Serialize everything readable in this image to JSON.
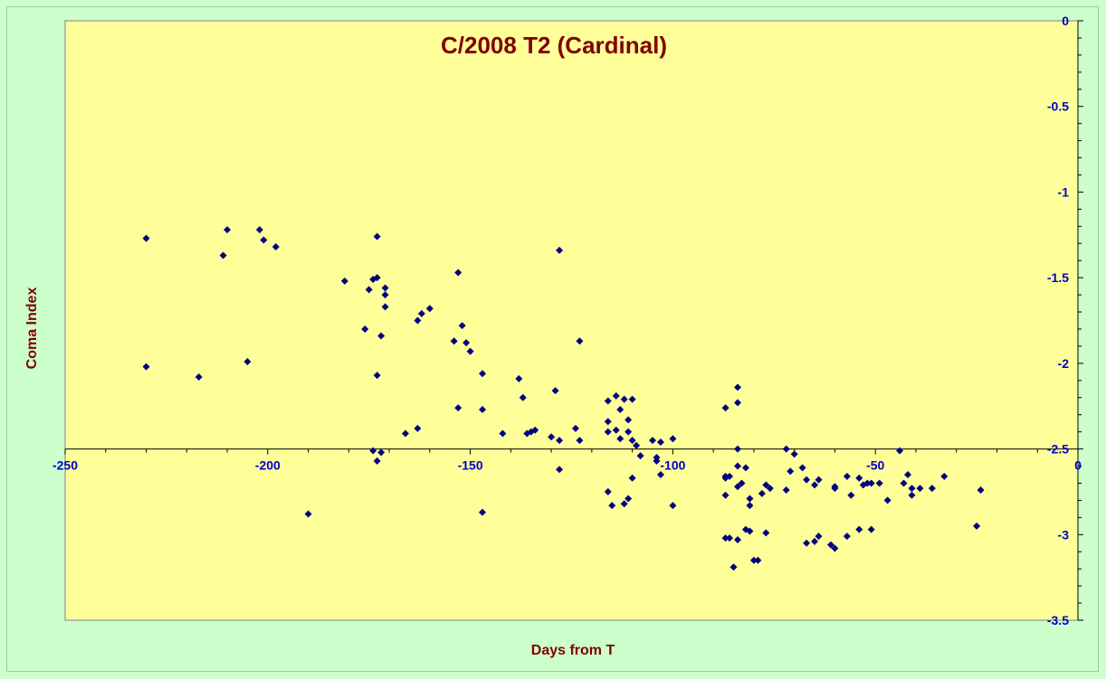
{
  "chart_data": {
    "type": "scatter",
    "title": "C/2008 T2 (Cardinal)",
    "xlabel": "Days from T",
    "ylabel": "Coma Index",
    "xlim": [
      -250,
      0
    ],
    "ylim": [
      -3.5,
      0
    ],
    "x_ticks": [
      -250,
      -200,
      -150,
      -100,
      -50,
      0
    ],
    "y_ticks": [
      0,
      -0.5,
      -1,
      -1.5,
      -2,
      -2.5,
      -3,
      -3.5
    ],
    "x_axis_crosses_y": -2.5,
    "y_axis_position": "right",
    "grid": false,
    "legend": "none",
    "colors": {
      "plot_background": "#ffff99",
      "page_background": "#ccffcc",
      "marker": "#000080",
      "title": "#800000",
      "tick_labels": "#0000cc"
    },
    "points": [
      [
        -230,
        -1.27
      ],
      [
        -230,
        -2.02
      ],
      [
        -217,
        -2.08
      ],
      [
        -211,
        -1.37
      ],
      [
        -210,
        -1.22
      ],
      [
        -205,
        -1.99
      ],
      [
        -202,
        -1.22
      ],
      [
        -201,
        -1.28
      ],
      [
        -198,
        -1.32
      ],
      [
        -190,
        -2.88
      ],
      [
        -181,
        -1.52
      ],
      [
        -176,
        -1.8
      ],
      [
        -175,
        -1.57
      ],
      [
        -174,
        -1.51
      ],
      [
        -174,
        -2.51
      ],
      [
        -173,
        -1.5
      ],
      [
        -173,
        -1.26
      ],
      [
        -173,
        -2.07
      ],
      [
        -173,
        -2.57
      ],
      [
        -172,
        -1.84
      ],
      [
        -172,
        -2.52
      ],
      [
        -171,
        -1.56
      ],
      [
        -171,
        -1.6
      ],
      [
        -171,
        -1.67
      ],
      [
        -166,
        -2.41
      ],
      [
        -163,
        -1.75
      ],
      [
        -163,
        -2.38
      ],
      [
        -162,
        -1.71
      ],
      [
        -160,
        -1.68
      ],
      [
        -154,
        -1.87
      ],
      [
        -153,
        -1.47
      ],
      [
        -153,
        -2.26
      ],
      [
        -152,
        -1.78
      ],
      [
        -151,
        -1.88
      ],
      [
        -150,
        -1.93
      ],
      [
        -147,
        -2.06
      ],
      [
        -147,
        -2.27
      ],
      [
        -147,
        -2.87
      ],
      [
        -142,
        -2.41
      ],
      [
        -138,
        -2.09
      ],
      [
        -137,
        -2.2
      ],
      [
        -136,
        -2.41
      ],
      [
        -135,
        -2.4
      ],
      [
        -134,
        -2.39
      ],
      [
        -130,
        -2.43
      ],
      [
        -129,
        -2.16
      ],
      [
        -128,
        -2.45
      ],
      [
        -128,
        -2.62
      ],
      [
        -128,
        -1.34
      ],
      [
        -124,
        -2.38
      ],
      [
        -123,
        -1.87
      ],
      [
        -123,
        -2.45
      ],
      [
        -116,
        -2.22
      ],
      [
        -116,
        -2.34
      ],
      [
        -116,
        -2.4
      ],
      [
        -116,
        -2.75
      ],
      [
        -115,
        -2.83
      ],
      [
        -114,
        -2.19
      ],
      [
        -114,
        -2.39
      ],
      [
        -113,
        -2.27
      ],
      [
        -113,
        -2.44
      ],
      [
        -112,
        -2.21
      ],
      [
        -112,
        -2.82
      ],
      [
        -111,
        -2.33
      ],
      [
        -111,
        -2.4
      ],
      [
        -111,
        -2.79
      ],
      [
        -110,
        -2.21
      ],
      [
        -110,
        -2.45
      ],
      [
        -110,
        -2.67
      ],
      [
        -109,
        -2.48
      ],
      [
        -108,
        -2.54
      ],
      [
        -105,
        -2.45
      ],
      [
        -104,
        -2.57
      ],
      [
        -104,
        -2.55
      ],
      [
        -103,
        -2.46
      ],
      [
        -103,
        -2.65
      ],
      [
        -100,
        -2.44
      ],
      [
        -100,
        -2.83
      ],
      [
        -87,
        -2.26
      ],
      [
        -87,
        -2.67
      ],
      [
        -87,
        -2.66
      ],
      [
        -87,
        -2.77
      ],
      [
        -87,
        -3.02
      ],
      [
        -86,
        -2.66
      ],
      [
        -86,
        -3.02
      ],
      [
        -85,
        -3.19
      ],
      [
        -84,
        -2.14
      ],
      [
        -84,
        -2.23
      ],
      [
        -84,
        -2.5
      ],
      [
        -84,
        -2.6
      ],
      [
        -84,
        -2.72
      ],
      [
        -84,
        -3.03
      ],
      [
        -83,
        -2.7
      ],
      [
        -82,
        -2.97
      ],
      [
        -82,
        -2.61
      ],
      [
        -81,
        -2.98
      ],
      [
        -81,
        -2.79
      ],
      [
        -81,
        -2.83
      ],
      [
        -80,
        -3.15
      ],
      [
        -79,
        -3.15
      ],
      [
        -78,
        -2.76
      ],
      [
        -77,
        -2.71
      ],
      [
        -77,
        -2.99
      ],
      [
        -76,
        -2.73
      ],
      [
        -72,
        -2.5
      ],
      [
        -72,
        -2.74
      ],
      [
        -71,
        -2.63
      ],
      [
        -70,
        -2.53
      ],
      [
        -68,
        -2.61
      ],
      [
        -67,
        -2.68
      ],
      [
        -67,
        -3.05
      ],
      [
        -65,
        -3.04
      ],
      [
        -65,
        -2.71
      ],
      [
        -64,
        -3.01
      ],
      [
        -64,
        -2.68
      ],
      [
        -61,
        -3.06
      ],
      [
        -60,
        -3.08
      ],
      [
        -60,
        -2.72
      ],
      [
        -60,
        -2.73
      ],
      [
        -57,
        -2.66
      ],
      [
        -57,
        -3.01
      ],
      [
        -56,
        -2.77
      ],
      [
        -54,
        -2.67
      ],
      [
        -54,
        -2.97
      ],
      [
        -53,
        -2.71
      ],
      [
        -52,
        -2.7
      ],
      [
        -51,
        -2.97
      ],
      [
        -51,
        -2.7
      ],
      [
        -49,
        -2.7
      ],
      [
        -47,
        -2.8
      ],
      [
        -44,
        -2.51
      ],
      [
        -43,
        -2.7
      ],
      [
        -42,
        -2.65
      ],
      [
        -41,
        -2.73
      ],
      [
        -41,
        -2.77
      ],
      [
        -39,
        -2.73
      ],
      [
        -36,
        -2.73
      ],
      [
        -33,
        -2.66
      ],
      [
        -25,
        -2.95
      ],
      [
        -24,
        -2.74
      ]
    ]
  }
}
